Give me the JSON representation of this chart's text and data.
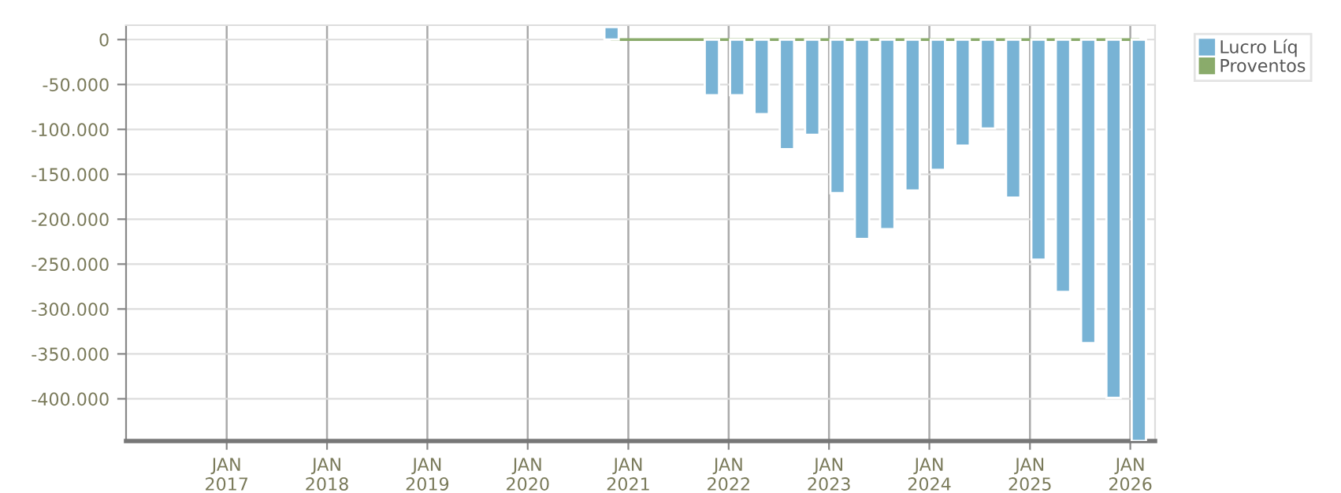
{
  "chart_data": {
    "type": "bar",
    "x": [
      "2020-11",
      "2021-11",
      "2022-02",
      "2022-05",
      "2022-08",
      "2022-11",
      "2023-02",
      "2023-05",
      "2023-08",
      "2023-11",
      "2024-02",
      "2024-05",
      "2024-08",
      "2024-11",
      "2025-02",
      "2025-05",
      "2025-08",
      "2025-11",
      "2026-02"
    ],
    "series": [
      {
        "name": "Lucro Líq",
        "color": "#78b3d5",
        "values": [
          14000,
          -62000,
          -62000,
          -83000,
          -122000,
          -106000,
          -171000,
          -222000,
          -211000,
          -168000,
          -145000,
          -118000,
          -99000,
          -176000,
          -245000,
          -281000,
          -338000,
          -399000,
          -447000
        ]
      },
      {
        "name": "Proventos",
        "type": "line",
        "color": "#8aab6b",
        "x": [
          "2020-11",
          "2021-02",
          "2021-05",
          "2021-08",
          "2021-11",
          "2022-02",
          "2022-05",
          "2022-08",
          "2022-11",
          "2023-02",
          "2023-05",
          "2023-08",
          "2023-11",
          "2024-02",
          "2024-05",
          "2024-08",
          "2024-11",
          "2025-02",
          "2025-05",
          "2025-08",
          "2025-11",
          "2026-02"
        ],
        "values": [
          0,
          0,
          0,
          0,
          0,
          0,
          0,
          0,
          0,
          0,
          0,
          0,
          0,
          0,
          0,
          0,
          0,
          0,
          0,
          0,
          0,
          0
        ]
      }
    ],
    "xlim": [
      "2016-01",
      "2026-04"
    ],
    "xticks": [
      {
        "value": "2017-01",
        "label": "JAN\n2017"
      },
      {
        "value": "2018-01",
        "label": "JAN\n2018"
      },
      {
        "value": "2019-01",
        "label": "JAN\n2019"
      },
      {
        "value": "2020-01",
        "label": "JAN\n2020"
      },
      {
        "value": "2021-01",
        "label": "JAN\n2021"
      },
      {
        "value": "2022-01",
        "label": "JAN\n2022"
      },
      {
        "value": "2023-01",
        "label": "JAN\n2023"
      },
      {
        "value": "2024-01",
        "label": "JAN\n2024"
      },
      {
        "value": "2025-01",
        "label": "JAN\n2025"
      },
      {
        "value": "2026-01",
        "label": "JAN\n2026"
      }
    ],
    "ylim": [
      -447000,
      16000
    ],
    "yticks": [
      0,
      {
        "value": -50000,
        "label": "-50.000"
      },
      {
        "value": -100000,
        "label": "-100.000"
      },
      {
        "value": -150000,
        "label": "-150.000"
      },
      {
        "value": -200000,
        "label": "-200.000"
      },
      {
        "value": -250000,
        "label": "-250.000"
      },
      {
        "value": -300000,
        "label": "-300.000"
      },
      {
        "value": -350000,
        "label": "-350.000"
      },
      {
        "value": -400000,
        "label": "-400.000"
      }
    ],
    "grid": true,
    "legend": "top right",
    "marker": "none",
    "line_style": "solid"
  }
}
